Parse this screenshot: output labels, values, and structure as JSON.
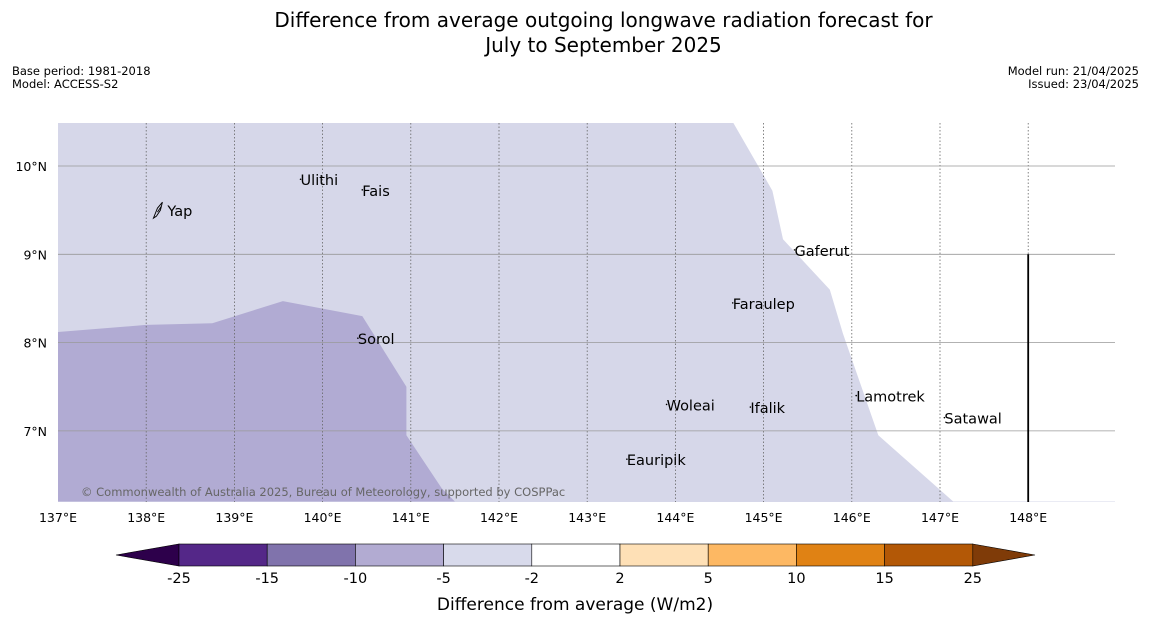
{
  "title_line1": "Difference from average outgoing longwave radiation forecast for",
  "title_line2": "July to September 2025",
  "base_period": "Base period: 1981-2018",
  "model": "Model: ACCESS-S2",
  "model_run": "Model run: 21/04/2025",
  "issued": "Issued: 23/04/2025",
  "copyright": "© Commonwealth of Australia 2025, Bureau of Meteorology, supported by COSPPac",
  "map": {
    "lon_range": [
      137,
      149
    ],
    "lat_range": [
      6.2,
      10.5
    ],
    "lon_ticks": [
      137,
      138,
      139,
      140,
      141,
      142,
      143,
      144,
      145,
      146,
      147,
      148
    ],
    "lon_tick_labels": [
      "137°E",
      "138°E",
      "139°E",
      "140°E",
      "141°E",
      "142°E",
      "143°E",
      "144°E",
      "145°E",
      "146°E",
      "147°E",
      "148°E"
    ],
    "lat_ticks": [
      7,
      8,
      9,
      10
    ],
    "lat_tick_labels": [
      "7°N",
      "8°N",
      "9°N",
      "10°N"
    ],
    "background_color": "#d6d7e9",
    "anomaly_regions": [
      {
        "range": "-10 to -5",
        "color": "#b1abd3",
        "outline": [
          [
            137.0,
            8.12
          ],
          [
            138.0,
            8.2
          ],
          [
            138.75,
            8.22
          ],
          [
            139.55,
            8.47
          ],
          [
            140.45,
            8.3
          ],
          [
            140.95,
            7.5
          ],
          [
            140.95,
            6.95
          ],
          [
            141.35,
            6.35
          ],
          [
            141.5,
            6.2
          ],
          [
            137.0,
            6.2
          ]
        ]
      }
    ],
    "uncolored_region": {
      "color": "#ffffff",
      "outline": [
        [
          144.65,
          10.5
        ],
        [
          145.1,
          9.72
        ],
        [
          145.22,
          9.17
        ],
        [
          145.75,
          8.6
        ],
        [
          145.9,
          8.1
        ],
        [
          146.3,
          6.95
        ],
        [
          147.15,
          6.2
        ],
        [
          149.0,
          6.2
        ],
        [
          149.0,
          10.5
        ]
      ]
    },
    "islands": [
      {
        "name": "Yap",
        "lon": 138.15,
        "lat": 9.5,
        "icon": "yap-island-outline"
      },
      {
        "name": "Ulithi",
        "lon": 139.75,
        "lat": 9.85
      },
      {
        "name": "Fais",
        "lon": 140.45,
        "lat": 9.73
      },
      {
        "name": "Gaferut",
        "lon": 145.35,
        "lat": 9.05
      },
      {
        "name": "Faraulep",
        "lon": 144.65,
        "lat": 8.45
      },
      {
        "name": "Sorol",
        "lon": 140.4,
        "lat": 8.05
      },
      {
        "name": "Lamotrek",
        "lon": 146.05,
        "lat": 7.4
      },
      {
        "name": "Woleai",
        "lon": 143.9,
        "lat": 7.3
      },
      {
        "name": "Ifalik",
        "lon": 144.85,
        "lat": 7.27
      },
      {
        "name": "Satawal",
        "lon": 147.05,
        "lat": 7.15
      },
      {
        "name": "Eauripik",
        "lon": 143.45,
        "lat": 6.68
      }
    ],
    "boundary_line": {
      "lon": 148.0,
      "lat_from": 6.2,
      "lat_to": 9.0
    }
  },
  "colorbar": {
    "label": "Difference from average (W/m2)",
    "tick_labels": [
      "-25",
      "-15",
      "-10",
      "-5",
      "-2",
      "2",
      "5",
      "10",
      "15",
      "25"
    ],
    "under_color": "#2d004b",
    "over_color": "#7f3b08",
    "colors": [
      "#542788",
      "#8073ac",
      "#b2abd2",
      "#d8daeb",
      "#ffffff",
      "#fee0b6",
      "#fdb863",
      "#e08214",
      "#b35806"
    ]
  }
}
